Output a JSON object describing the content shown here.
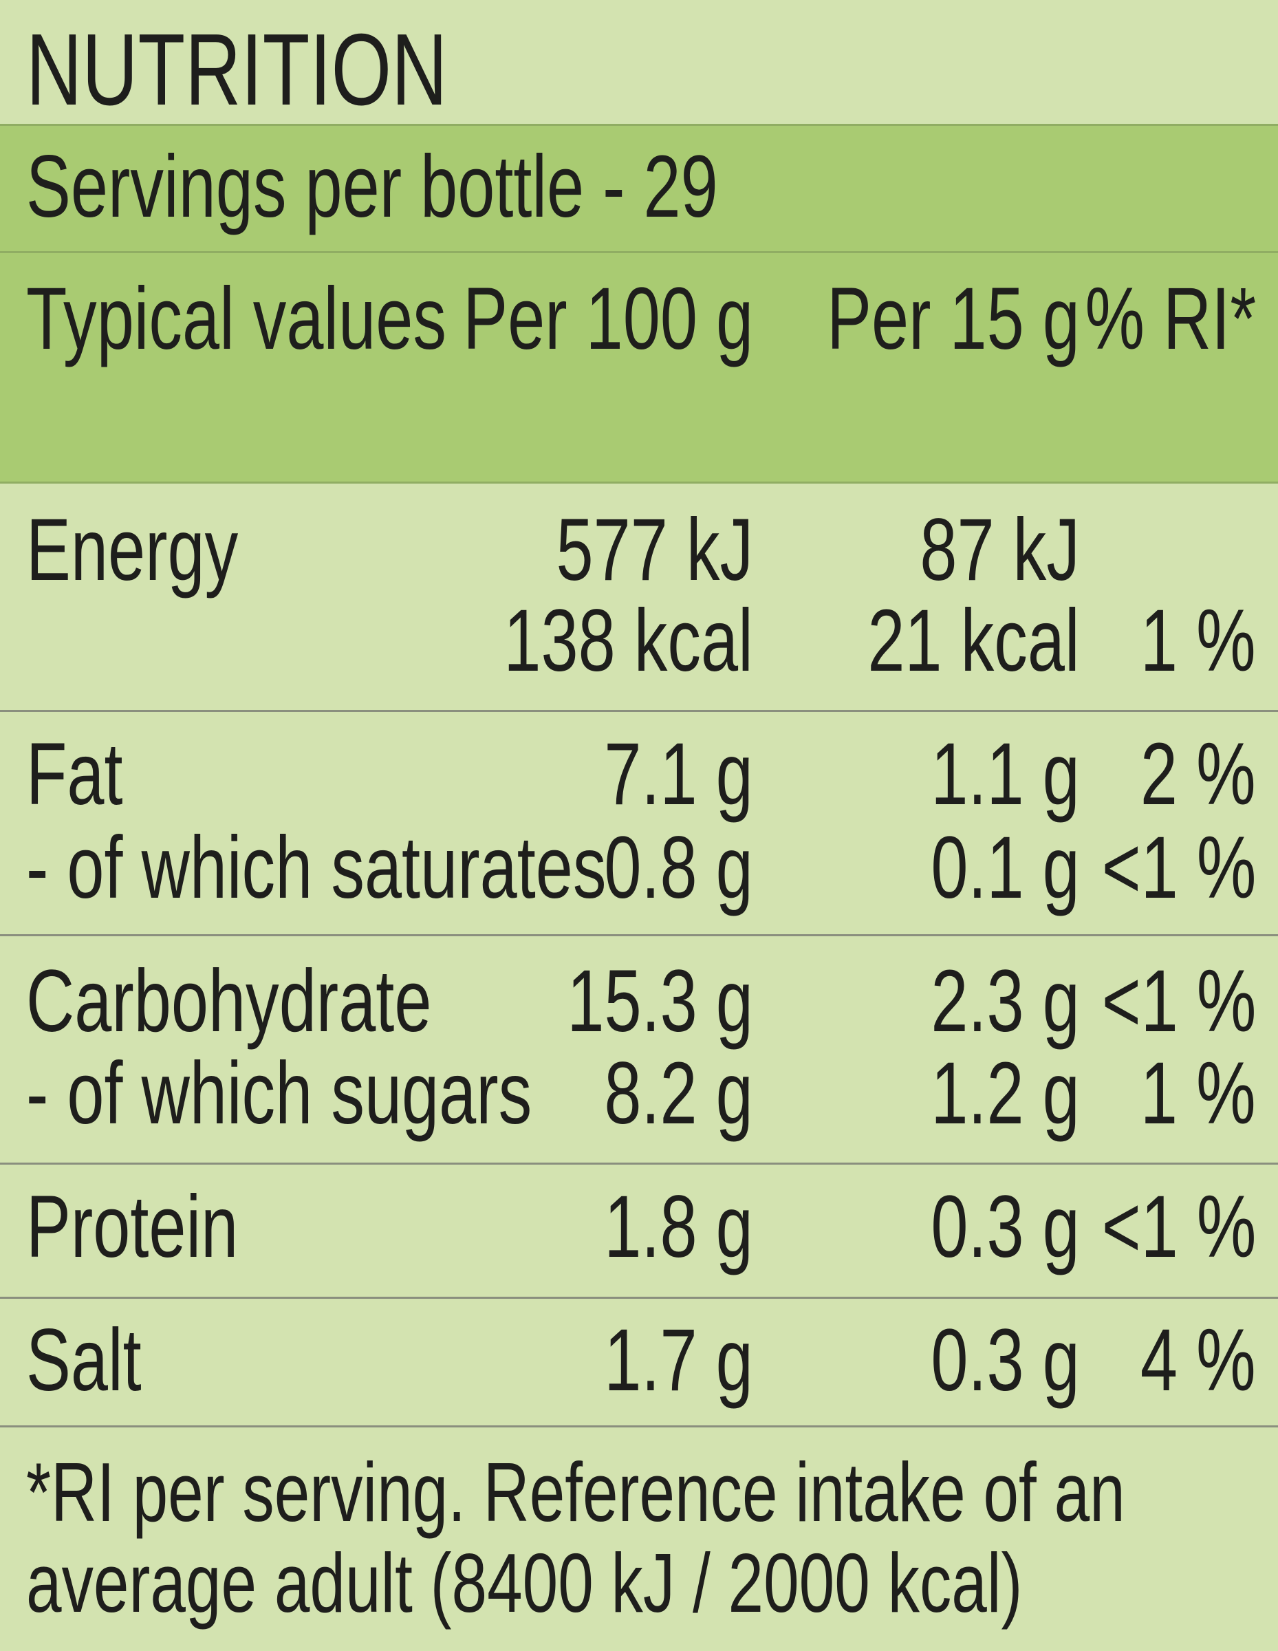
{
  "title": "NUTRITION",
  "servings": "Servings per bottle - 29",
  "columns": {
    "label": "Typical values",
    "per100": "Per 100 g",
    "per15": "Per 15 g",
    "ri": "% RI*"
  },
  "rows": [
    {
      "label": "Energy",
      "per100": "577 kJ",
      "per15": "87 kJ",
      "ri": ""
    },
    {
      "label": "",
      "per100": "138 kcal",
      "per15": "21 kcal",
      "ri": "1 %"
    },
    {
      "label": "Fat",
      "per100": "7.1 g",
      "per15": "1.1 g",
      "ri": "2 %"
    },
    {
      "label": "- of which saturates",
      "per100": "0.8 g",
      "per15": "0.1 g",
      "ri": "<1 %"
    },
    {
      "label": "Carbohydrate",
      "per100": "15.3 g",
      "per15": "2.3 g",
      "ri": "<1 %"
    },
    {
      "label": "- of which sugars",
      "per100": "8.2 g",
      "per15": "1.2 g",
      "ri": "1 %"
    },
    {
      "label": "Protein",
      "per100": "1.8 g",
      "per15": "0.3 g",
      "ri": "<1 %"
    },
    {
      "label": "Salt",
      "per100": "1.7 g",
      "per15": "0.3 g",
      "ri": "4 %"
    }
  ],
  "footnote": {
    "line1": "*RI per serving. Reference intake of an",
    "line2": "average adult (8400 kJ / 2000 kcal)"
  },
  "colors": {
    "panel": "#d3e3b0",
    "header": "#a9cb72",
    "text": "#1e1e1c"
  }
}
